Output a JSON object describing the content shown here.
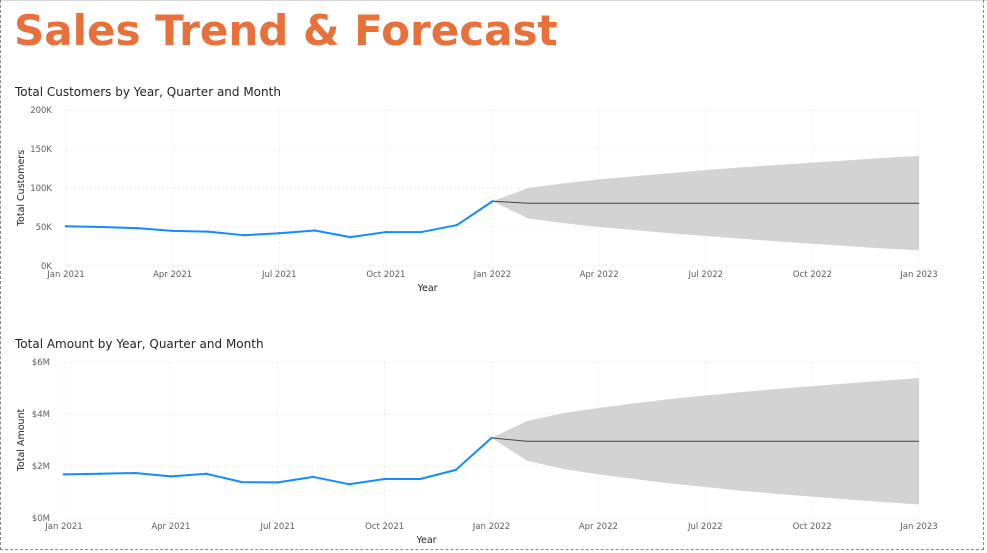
{
  "report": {
    "title": "Sales Trend & Forecast",
    "accent_color": "#e8703b"
  },
  "chart_data": [
    {
      "type": "line",
      "title": "Total Customers by Year, Quarter and Month",
      "xlabel": "Year",
      "ylabel": "Total Customers",
      "grid": true,
      "legend": "none",
      "ylim": [
        0,
        200000
      ],
      "y_ticks": [
        {
          "value": 0,
          "label": "0K"
        },
        {
          "value": 50000,
          "label": "50K"
        },
        {
          "value": 100000,
          "label": "100K"
        },
        {
          "value": 150000,
          "label": "150K"
        },
        {
          "value": 200000,
          "label": "200K"
        }
      ],
      "x_ticks": [
        {
          "value": 0,
          "label": "Jan 2021"
        },
        {
          "value": 3,
          "label": "Apr 2021"
        },
        {
          "value": 6,
          "label": "Jul 2021"
        },
        {
          "value": 9,
          "label": "Oct 2021"
        },
        {
          "value": 12,
          "label": "Jan 2022"
        },
        {
          "value": 15,
          "label": "Apr 2022"
        },
        {
          "value": 18,
          "label": "Jul 2022"
        },
        {
          "value": 21,
          "label": "Oct 2022"
        },
        {
          "value": 24,
          "label": "Jan 2023"
        }
      ],
      "series_color": "#118dff",
      "forecast_color": "#444444",
      "band_color": "#d3d3d3",
      "actual": {
        "x": [
          "Jan 2021",
          "Feb 2021",
          "Mar 2021",
          "Apr 2021",
          "May 2021",
          "Jun 2021",
          "Jul 2021",
          "Aug 2021",
          "Sep 2021",
          "Oct 2021",
          "Nov 2021",
          "Dec 2021",
          "Jan 2022"
        ],
        "values": [
          51000,
          50000,
          48500,
          45000,
          44000,
          39500,
          42000,
          45500,
          37000,
          43500,
          43500,
          52500,
          83000
        ]
      },
      "forecast": {
        "x": [
          "Jan 2022",
          "Feb 2022",
          "Mar 2022",
          "Apr 2022",
          "May 2022",
          "Jun 2022",
          "Jul 2022",
          "Aug 2022",
          "Sep 2022",
          "Oct 2022",
          "Nov 2022",
          "Dec 2022",
          "Jan 2023"
        ],
        "values": [
          83000,
          80500,
          80500,
          80500,
          80500,
          80500,
          80500,
          80500,
          80500,
          80500,
          80500,
          80500,
          80500
        ],
        "upper": [
          83000,
          100000,
          106000,
          111000,
          115000,
          119000,
          123000,
          126500,
          129500,
          132500,
          135500,
          138500,
          141000
        ],
        "lower": [
          83000,
          61000,
          55000,
          50000,
          46000,
          42000,
          38500,
          35000,
          31500,
          28500,
          25500,
          22500,
          20000
        ]
      }
    },
    {
      "type": "line",
      "title": "Total Amount by Year, Quarter and Month",
      "xlabel": "Year",
      "ylabel": "Total Amount",
      "grid": true,
      "legend": "none",
      "ylim": [
        0,
        6000000
      ],
      "y_ticks": [
        {
          "value": 0,
          "label": "$0M"
        },
        {
          "value": 2000000,
          "label": "$2M"
        },
        {
          "value": 4000000,
          "label": "$4M"
        },
        {
          "value": 6000000,
          "label": "$6M"
        }
      ],
      "x_ticks": [
        {
          "value": 0,
          "label": "Jan 2021"
        },
        {
          "value": 3,
          "label": "Apr 2021"
        },
        {
          "value": 6,
          "label": "Jul 2021"
        },
        {
          "value": 9,
          "label": "Oct 2021"
        },
        {
          "value": 12,
          "label": "Jan 2022"
        },
        {
          "value": 15,
          "label": "Apr 2022"
        },
        {
          "value": 18,
          "label": "Jul 2022"
        },
        {
          "value": 21,
          "label": "Oct 2022"
        },
        {
          "value": 24,
          "label": "Jan 2023"
        }
      ],
      "series_color": "#118dff",
      "forecast_color": "#444444",
      "band_color": "#d3d3d3",
      "actual": {
        "x": [
          "Jan 2021",
          "Feb 2021",
          "Mar 2021",
          "Apr 2021",
          "May 2021",
          "Jun 2021",
          "Jul 2021",
          "Aug 2021",
          "Sep 2021",
          "Oct 2021",
          "Nov 2021",
          "Dec 2021",
          "Jan 2022"
        ],
        "values": [
          1680000,
          1700000,
          1730000,
          1600000,
          1700000,
          1380000,
          1370000,
          1580000,
          1300000,
          1500000,
          1500000,
          1850000,
          3080000
        ]
      },
      "forecast": {
        "x": [
          "Jan 2022",
          "Feb 2022",
          "Mar 2022",
          "Apr 2022",
          "May 2022",
          "Jun 2022",
          "Jul 2022",
          "Aug 2022",
          "Sep 2022",
          "Oct 2022",
          "Nov 2022",
          "Dec 2022",
          "Jan 2023"
        ],
        "values": [
          3080000,
          2950000,
          2950000,
          2950000,
          2950000,
          2950000,
          2950000,
          2950000,
          2950000,
          2950000,
          2950000,
          2950000,
          2950000
        ],
        "upper": [
          3080000,
          3730000,
          4030000,
          4230000,
          4410000,
          4570000,
          4710000,
          4840000,
          4960000,
          5070000,
          5180000,
          5280000,
          5380000
        ],
        "lower": [
          3080000,
          2200000,
          1890000,
          1680000,
          1500000,
          1330000,
          1190000,
          1050000,
          930000,
          820000,
          710000,
          610000,
          520000
        ]
      }
    }
  ]
}
